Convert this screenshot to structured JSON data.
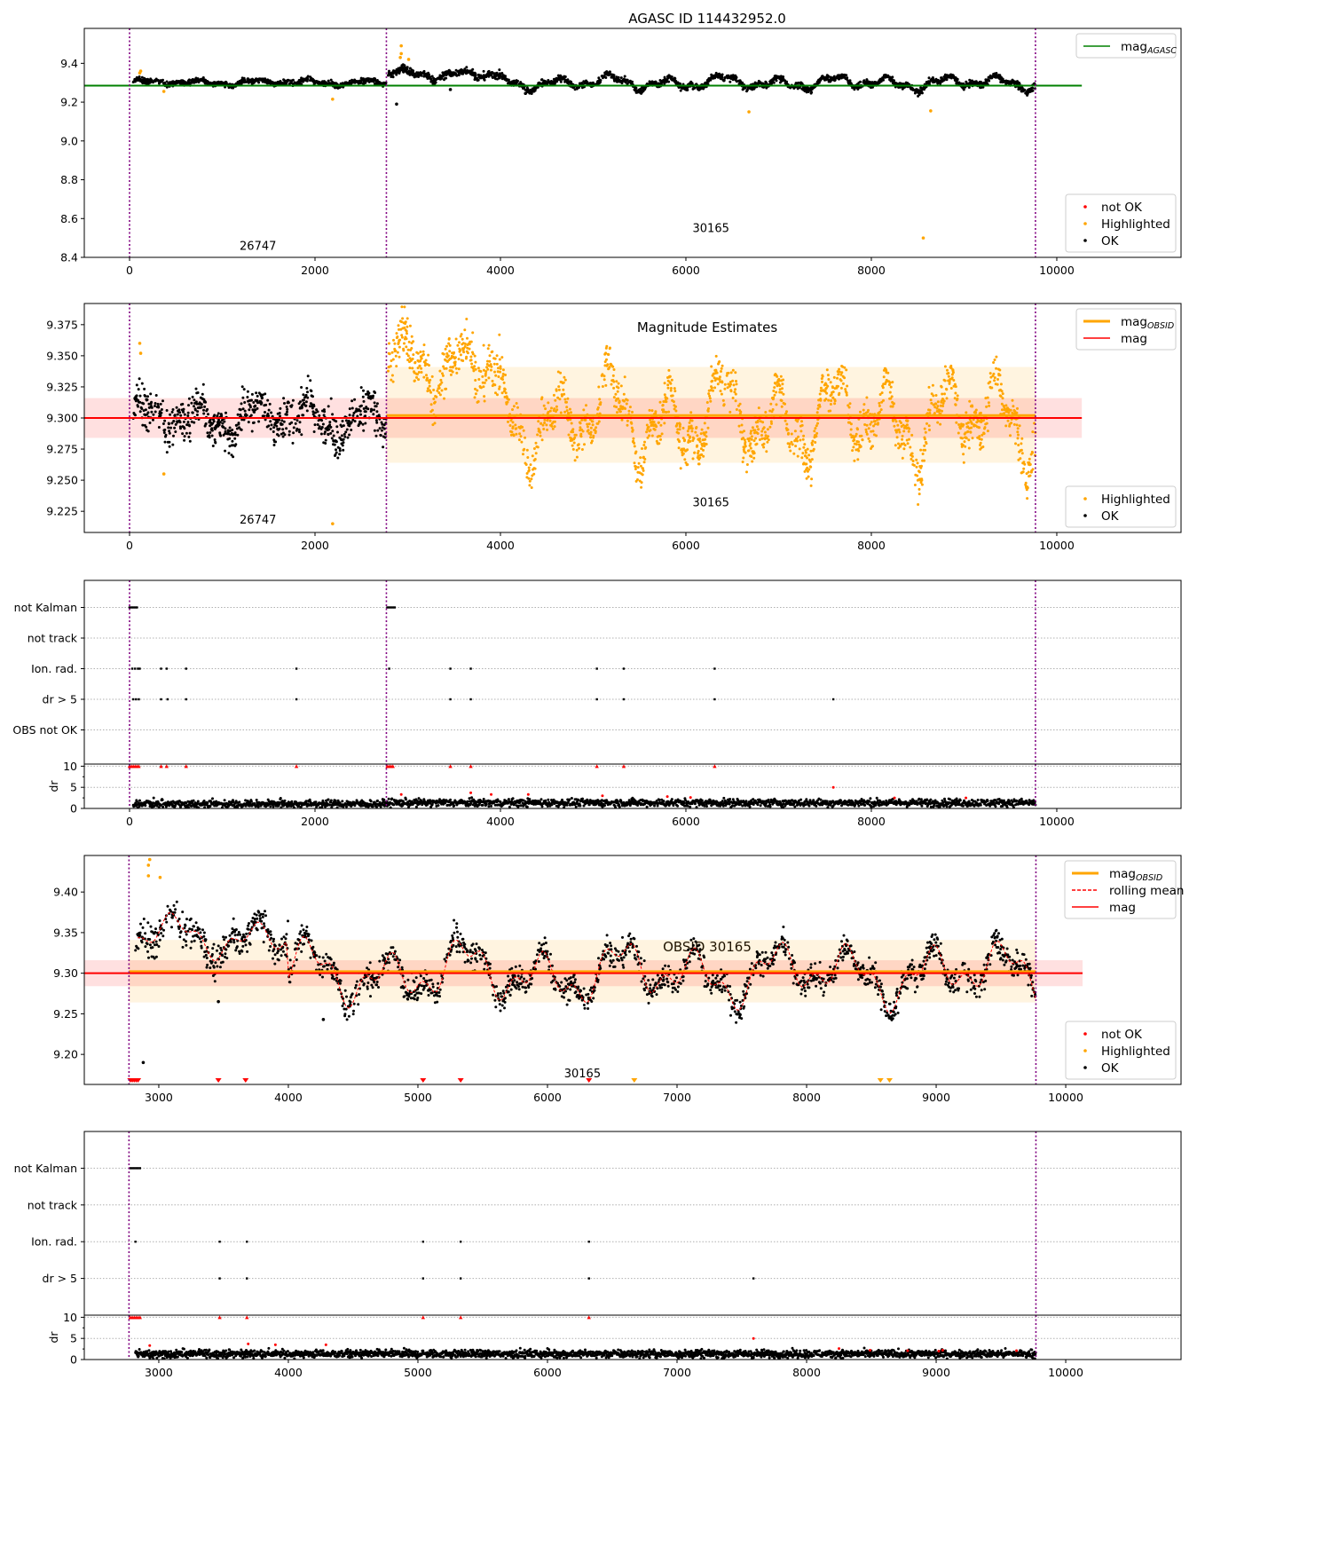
{
  "colors": {
    "ok": "#000000",
    "highlighted": "#ffa500",
    "not_ok": "#ff0000",
    "mag_agasc": "#008000",
    "mag_obsid": "#ffa500",
    "mag": "#ff0000",
    "obs_boundary": "#800080",
    "grid": "#b0b0b0"
  },
  "chart_data": [
    {
      "id": "agasc",
      "type": "scatter",
      "title": "AGASC ID 114432952.0",
      "xlim": [
        -488,
        11340
      ],
      "ylim": [
        8.4,
        9.58
      ],
      "xticks": [
        0,
        2000,
        4000,
        6000,
        8000,
        10000
      ],
      "xtick_labels": [
        "0",
        "2000",
        "4000",
        "6000",
        "8000",
        "10000"
      ],
      "yticks": [
        8.4,
        8.6,
        8.8,
        9.0,
        9.2,
        9.4
      ],
      "ytick_labels": [
        "8.4",
        "8.6",
        "8.8",
        "9.0",
        "9.2",
        "9.4"
      ],
      "obs_boundaries": [
        0,
        2770,
        9770
      ],
      "obs_labels": [
        {
          "text": "26747",
          "x": 1385,
          "y": 8.44
        },
        {
          "text": "30165",
          "x": 6270,
          "y": 8.53
        }
      ],
      "hlines": [
        {
          "name": "mag_AGASC",
          "y": 9.285,
          "x0": -488,
          "x1": 10270,
          "color": "#008000",
          "width": 2
        }
      ],
      "bands": [],
      "series_segments": [
        {
          "x0": 40,
          "x1": 2770,
          "base": 9.302,
          "amp": 0.018,
          "noise": 0.012,
          "color": "ok"
        },
        {
          "x0": 2790,
          "x1": 4000,
          "base": 9.345,
          "amp": 0.03,
          "noise": 0.018,
          "color": "ok"
        },
        {
          "x0": 4000,
          "x1": 9770,
          "base": 9.3,
          "amp": 0.045,
          "noise": 0.015,
          "color": "ok"
        }
      ],
      "extra_points": [
        {
          "x": 120,
          "y": 9.36,
          "c": "highlighted"
        },
        {
          "x": 110,
          "y": 9.35,
          "c": "highlighted"
        },
        {
          "x": 370,
          "y": 9.255,
          "c": "highlighted"
        },
        {
          "x": 2190,
          "y": 9.215,
          "c": "highlighted"
        },
        {
          "x": 2930,
          "y": 9.49,
          "c": "highlighted"
        },
        {
          "x": 2930,
          "y": 9.45,
          "c": "highlighted"
        },
        {
          "x": 2920,
          "y": 9.43,
          "c": "highlighted"
        },
        {
          "x": 3010,
          "y": 9.42,
          "c": "highlighted"
        },
        {
          "x": 2880,
          "y": 9.19,
          "c": "ok"
        },
        {
          "x": 3460,
          "y": 9.265,
          "c": "ok"
        },
        {
          "x": 4270,
          "y": 9.245,
          "c": "ok"
        },
        {
          "x": 6680,
          "y": 9.15,
          "c": "highlighted"
        },
        {
          "x": 8640,
          "y": 9.155,
          "c": "highlighted"
        },
        {
          "x": 8560,
          "y": 8.5,
          "c": "highlighted"
        }
      ],
      "legend_lines": [
        {
          "label": "mag",
          "sub": "AGASC",
          "color": "#008000",
          "style": "solid"
        }
      ],
      "legend_points": [
        {
          "label": "not OK",
          "color": "#ff0000"
        },
        {
          "label": "Highlighted",
          "color": "#ffa500"
        },
        {
          "label": "OK",
          "color": "#000000"
        }
      ]
    },
    {
      "id": "estimates",
      "type": "scatter",
      "title": "Magnitude Estimates",
      "xlim": [
        -488,
        11340
      ],
      "ylim": [
        9.208,
        9.392
      ],
      "xticks": [
        0,
        2000,
        4000,
        6000,
        8000,
        10000
      ],
      "xtick_labels": [
        "0",
        "2000",
        "4000",
        "6000",
        "8000",
        "10000"
      ],
      "yticks": [
        9.225,
        9.25,
        9.275,
        9.3,
        9.325,
        9.35,
        9.375
      ],
      "ytick_labels": [
        "9.225",
        "9.250",
        "9.275",
        "9.300",
        "9.325",
        "9.350",
        "9.375"
      ],
      "obs_boundaries": [
        0,
        2770,
        9770
      ],
      "obs_labels": [
        {
          "text": "26747",
          "x": 1385,
          "y": 9.215
        },
        {
          "text": "30165",
          "x": 6270,
          "y": 9.229
        }
      ],
      "hlines": [
        {
          "name": "mag_OBSID",
          "y": 9.302,
          "x0": 2770,
          "x1": 9770,
          "color": "#ffa500",
          "width": 3
        },
        {
          "name": "mag",
          "y": 9.3,
          "x0": -488,
          "x1": 10270,
          "color": "#ff0000",
          "width": 2
        }
      ],
      "bands": [
        {
          "y0": 9.264,
          "y1": 9.341,
          "x0": 2770,
          "x1": 9770,
          "color": "#ffa500",
          "opacity": 0.12
        },
        {
          "y0": 9.284,
          "y1": 9.316,
          "x0": -488,
          "x1": 10270,
          "color": "#ff0000",
          "opacity": 0.12
        }
      ],
      "series_segments": [
        {
          "x0": 40,
          "x1": 2770,
          "base": 9.3,
          "amp": 0.018,
          "noise": 0.014,
          "color": "ok"
        },
        {
          "x0": 2790,
          "x1": 4000,
          "base": 9.345,
          "amp": 0.03,
          "noise": 0.018,
          "color": "highlighted"
        },
        {
          "x0": 4000,
          "x1": 9770,
          "base": 9.3,
          "amp": 0.045,
          "noise": 0.015,
          "color": "highlighted"
        }
      ],
      "extra_points": [
        {
          "x": 110,
          "y": 9.36,
          "c": "highlighted"
        },
        {
          "x": 120,
          "y": 9.352,
          "c": "highlighted"
        },
        {
          "x": 370,
          "y": 9.255,
          "c": "highlighted"
        },
        {
          "x": 2190,
          "y": 9.215,
          "c": "highlighted"
        }
      ],
      "legend_lines": [
        {
          "label": "mag",
          "sub": "OBSID",
          "color": "#ffa500",
          "style": "thick"
        },
        {
          "label": "mag",
          "sub": "",
          "color": "#ff0000",
          "style": "solid"
        }
      ],
      "legend_points": [
        {
          "label": "Highlighted",
          "color": "#ffa500"
        },
        {
          "label": "OK",
          "color": "#000000"
        }
      ]
    },
    {
      "id": "flags-all",
      "type": "scatter",
      "xlim": [
        -488,
        11340
      ],
      "xticks": [
        0,
        2000,
        4000,
        6000,
        8000,
        10000
      ],
      "xtick_labels": [
        "0",
        "2000",
        "4000",
        "6000",
        "8000",
        "10000"
      ],
      "obs_boundaries": [
        0,
        2770,
        9770
      ],
      "flag_labels": [
        "not Kalman",
        "not track",
        "Ion. rad.",
        "dr > 5",
        "OBS not OK"
      ],
      "flag_points": {
        "not Kalman": [
          0,
          20,
          40,
          60,
          80,
          2780,
          2800,
          2820,
          2840,
          2860
        ],
        "not track": [],
        "Ion. rad.": [
          30,
          60,
          90,
          110,
          340,
          400,
          610,
          1800,
          2800,
          3460,
          3680,
          5040,
          5330,
          6310
        ],
        "dr > 5": [
          40,
          70,
          100,
          340,
          410,
          610,
          1800,
          3460,
          3680,
          5040,
          5330,
          6310,
          7590
        ],
        "OBS not OK": []
      },
      "dr_ylabel": "dr",
      "dr_ylim": [
        0,
        10.5
      ],
      "dr_yticks": [
        0,
        5,
        10
      ],
      "dr_ytick_labels": [
        "0",
        "5",
        "10"
      ],
      "dr_clipped": [
        0,
        20,
        40,
        60,
        80,
        100,
        340,
        400,
        610,
        1800,
        2780,
        2800,
        2820,
        2840,
        3460,
        3680,
        5040,
        5330,
        6310
      ],
      "dr_red_points": [
        {
          "x": 7590,
          "y": 5
        },
        {
          "x": 3680,
          "y": 3.7
        },
        {
          "x": 3900,
          "y": 3.3
        },
        {
          "x": 4300,
          "y": 3.3
        },
        {
          "x": 5100,
          "y": 3.0
        },
        {
          "x": 5800,
          "y": 2.8
        },
        {
          "x": 6050,
          "y": 2.6
        },
        {
          "x": 8250,
          "y": 2.5
        },
        {
          "x": 9020,
          "y": 2.5
        },
        {
          "x": 2930,
          "y": 3.3
        }
      ],
      "dr_range": [
        40,
        9770
      ]
    },
    {
      "id": "obsid",
      "type": "scatter",
      "title": "OBSID 30165",
      "xlim": [
        2425,
        10890
      ],
      "ylim": [
        9.163,
        9.445
      ],
      "xticks": [
        3000,
        4000,
        5000,
        6000,
        7000,
        8000,
        9000,
        10000
      ],
      "xtick_labels": [
        "3000",
        "4000",
        "5000",
        "6000",
        "7000",
        "8000",
        "9000",
        "10000"
      ],
      "yticks": [
        9.2,
        9.25,
        9.3,
        9.35,
        9.4
      ],
      "ytick_labels": [
        "9.20",
        "9.25",
        "9.30",
        "9.35",
        "9.40"
      ],
      "obs_boundaries": [
        2770,
        9770
      ],
      "obs_labels": [
        {
          "text": "30165",
          "x": 6270,
          "y": 9.172
        }
      ],
      "hlines": [
        {
          "name": "mag_OBSID",
          "y": 9.302,
          "x0": 2770,
          "x1": 9770,
          "color": "#ffa500",
          "width": 3
        },
        {
          "name": "mag",
          "y": 9.3,
          "x0": 2425,
          "x1": 10130,
          "color": "#ff0000",
          "width": 2
        }
      ],
      "bands": [
        {
          "y0": 9.264,
          "y1": 9.341,
          "x0": 2770,
          "x1": 9770,
          "color": "#ffa500",
          "opacity": 0.12
        },
        {
          "y0": 9.284,
          "y1": 9.316,
          "x0": 2425,
          "x1": 10130,
          "color": "#ff0000",
          "opacity": 0.12
        }
      ],
      "series_segments": [
        {
          "x0": 2820,
          "x1": 4000,
          "base": 9.345,
          "amp": 0.03,
          "noise": 0.018,
          "color": "ok"
        },
        {
          "x0": 4000,
          "x1": 9770,
          "base": 9.3,
          "amp": 0.045,
          "noise": 0.015,
          "color": "ok"
        }
      ],
      "rolling_mean": true,
      "extra_points": [
        {
          "x": 2930,
          "y": 9.44,
          "c": "highlighted"
        },
        {
          "x": 2920,
          "y": 9.433,
          "c": "highlighted"
        },
        {
          "x": 2920,
          "y": 9.42,
          "c": "highlighted"
        },
        {
          "x": 3010,
          "y": 9.418,
          "c": "highlighted"
        },
        {
          "x": 2880,
          "y": 9.19,
          "c": "ok"
        },
        {
          "x": 3460,
          "y": 9.265,
          "c": "ok"
        },
        {
          "x": 4270,
          "y": 9.243,
          "c": "ok"
        }
      ],
      "low_markers": [
        {
          "x": 2780,
          "c": "not_ok"
        },
        {
          "x": 2795,
          "c": "not_ok"
        },
        {
          "x": 2810,
          "c": "not_ok"
        },
        {
          "x": 2825,
          "c": "not_ok"
        },
        {
          "x": 2840,
          "c": "not_ok"
        },
        {
          "x": 3460,
          "c": "not_ok"
        },
        {
          "x": 3670,
          "c": "not_ok"
        },
        {
          "x": 5040,
          "c": "not_ok"
        },
        {
          "x": 5330,
          "c": "not_ok"
        },
        {
          "x": 6320,
          "c": "not_ok"
        },
        {
          "x": 6670,
          "c": "highlighted"
        },
        {
          "x": 8570,
          "c": "highlighted"
        },
        {
          "x": 8640,
          "c": "highlighted"
        }
      ],
      "legend_lines": [
        {
          "label": "mag",
          "sub": "OBSID",
          "color": "#ffa500",
          "style": "thick"
        },
        {
          "label": "rolling mean",
          "sub": "",
          "color": "#ff0000",
          "style": "dashed"
        },
        {
          "label": "mag",
          "sub": "",
          "color": "#ff0000",
          "style": "solid"
        }
      ],
      "legend_points": [
        {
          "label": "not OK",
          "color": "#ff0000"
        },
        {
          "label": "Highlighted",
          "color": "#ffa500"
        },
        {
          "label": "OK",
          "color": "#000000"
        }
      ]
    },
    {
      "id": "flags-obsid",
      "type": "scatter",
      "xlim": [
        2425,
        10890
      ],
      "xticks": [
        3000,
        4000,
        5000,
        6000,
        7000,
        8000,
        9000,
        10000
      ],
      "xtick_labels": [
        "3000",
        "4000",
        "5000",
        "6000",
        "7000",
        "8000",
        "9000",
        "10000"
      ],
      "obs_boundaries": [
        2770,
        9770
      ],
      "flag_labels": [
        "not Kalman",
        "not track",
        "Ion. rad.",
        "dr > 5"
      ],
      "flag_points": {
        "not Kalman": [
          2780,
          2795,
          2810,
          2825,
          2840,
          2855
        ],
        "not track": [],
        "Ion. rad.": [
          2820,
          3470,
          3680,
          5040,
          5330,
          6320
        ],
        "dr > 5": [
          3470,
          3680,
          5040,
          5330,
          6320,
          7590
        ]
      },
      "dr_ylabel": "dr",
      "dr_ylim": [
        0,
        10.5
      ],
      "dr_yticks": [
        0,
        5,
        10
      ],
      "dr_ytick_labels": [
        "0",
        "5",
        "10"
      ],
      "dr_clipped": [
        2780,
        2795,
        2810,
        2825,
        2840,
        2855,
        3470,
        3680,
        5040,
        5330,
        6320
      ],
      "dr_red_points": [
        {
          "x": 7590,
          "y": 5
        },
        {
          "x": 3690,
          "y": 3.7
        },
        {
          "x": 3900,
          "y": 3.5
        },
        {
          "x": 4290,
          "y": 3.5
        },
        {
          "x": 2930,
          "y": 3.3
        },
        {
          "x": 8250,
          "y": 2.6
        },
        {
          "x": 8490,
          "y": 2.2
        },
        {
          "x": 8780,
          "y": 2.1
        },
        {
          "x": 9020,
          "y": 2.0
        },
        {
          "x": 9050,
          "y": 2.2
        },
        {
          "x": 9620,
          "y": 2.1
        }
      ],
      "dr_range": [
        2820,
        9770
      ]
    }
  ]
}
